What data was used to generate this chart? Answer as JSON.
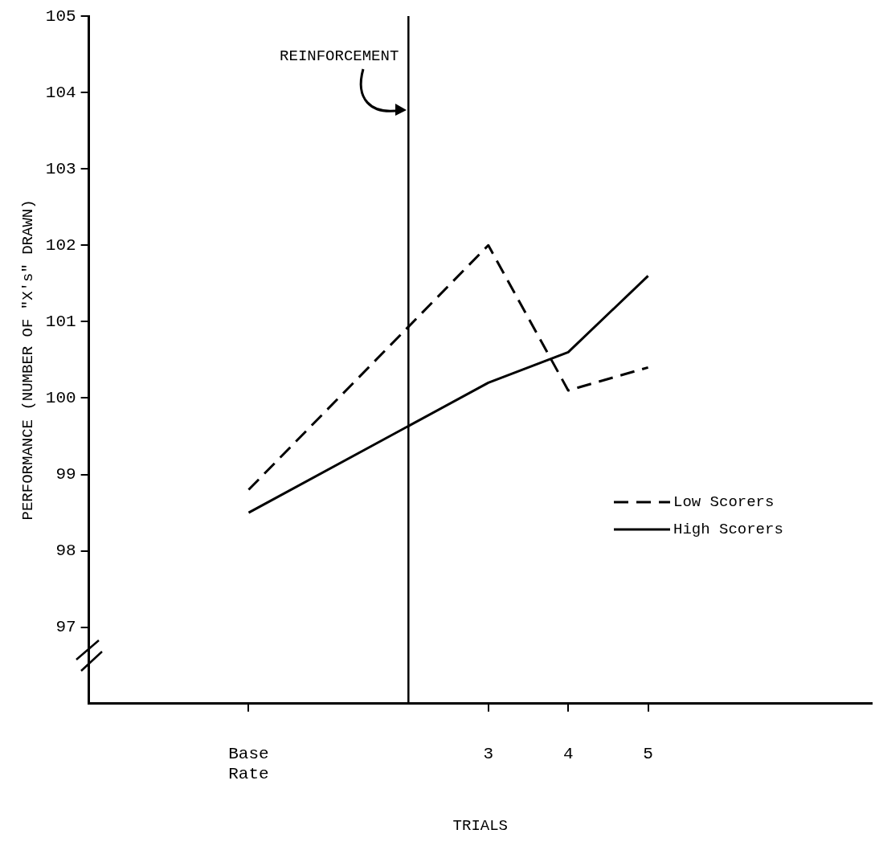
{
  "chart_data": {
    "type": "line",
    "xlabel": "TRIALS",
    "ylabel": "PERFORMANCE (NUMBER OF \"X's\" DRAWN)",
    "x": [
      0,
      3,
      4,
      5
    ],
    "xlim": [
      -2,
      7.8
    ],
    "xticks": [
      {
        "value": 0,
        "label": "Base Rate"
      },
      3,
      4,
      5
    ],
    "ylim": [
      96,
      105
    ],
    "yticks": [
      97,
      98,
      99,
      100,
      101,
      102,
      103,
      104,
      105
    ],
    "series": [
      {
        "name": "Low Scorers",
        "color": "#000000",
        "line_style": "dashed",
        "values": [
          98.8,
          102.0,
          100.1,
          100.4
        ]
      },
      {
        "name": "High Scorers",
        "color": "#000000",
        "line_style": "solid",
        "values": [
          98.5,
          100.2,
          100.6,
          101.6
        ]
      }
    ],
    "ref_lines": [
      {
        "axis": "x",
        "value": 2,
        "label": "REINFORCEMENT",
        "color": "#000000"
      }
    ],
    "grid": false,
    "legend": "bottom right",
    "marker": "none"
  }
}
